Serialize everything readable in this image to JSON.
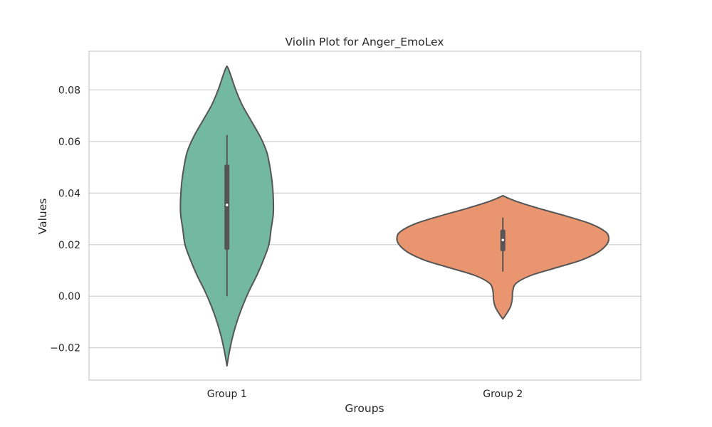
{
  "chart_data": {
    "type": "violin",
    "title": "Violin Plot for Anger_EmoLex",
    "xlabel": "Groups",
    "ylabel": "Values",
    "categories": [
      "Group 1",
      "Group 2"
    ],
    "ylim": [
      -0.0325,
      0.095
    ],
    "yticks": [
      {
        "value": -0.02,
        "label": "−0.02"
      },
      {
        "value": 0.0,
        "label": "0.00"
      },
      {
        "value": 0.02,
        "label": "0.02"
      },
      {
        "value": 0.04,
        "label": "0.04"
      },
      {
        "value": 0.06,
        "label": "0.06"
      },
      {
        "value": 0.08,
        "label": "0.08"
      }
    ],
    "grid": "horizontal",
    "series": [
      {
        "name": "Group 1",
        "color": "#73b8a1",
        "median": 0.0354,
        "q1": 0.018,
        "q3": 0.051,
        "whisker_low": 0.0,
        "whisker_high": 0.0625,
        "density": [
          {
            "y": -0.027,
            "w": 0.0
          },
          {
            "y": -0.022,
            "w": 0.02
          },
          {
            "y": -0.016,
            "w": 0.05
          },
          {
            "y": -0.01,
            "w": 0.09
          },
          {
            "y": -0.004,
            "w": 0.14
          },
          {
            "y": 0.002,
            "w": 0.2
          },
          {
            "y": 0.008,
            "w": 0.27
          },
          {
            "y": 0.014,
            "w": 0.33
          },
          {
            "y": 0.02,
            "w": 0.38
          },
          {
            "y": 0.026,
            "w": 0.4
          },
          {
            "y": 0.032,
            "w": 0.42
          },
          {
            "y": 0.038,
            "w": 0.42
          },
          {
            "y": 0.044,
            "w": 0.41
          },
          {
            "y": 0.05,
            "w": 0.39
          },
          {
            "y": 0.056,
            "w": 0.36
          },
          {
            "y": 0.062,
            "w": 0.3
          },
          {
            "y": 0.068,
            "w": 0.22
          },
          {
            "y": 0.074,
            "w": 0.14
          },
          {
            "y": 0.08,
            "w": 0.08
          },
          {
            "y": 0.085,
            "w": 0.04
          },
          {
            "y": 0.088,
            "w": 0.015
          },
          {
            "y": 0.0892,
            "w": 0.0
          }
        ]
      },
      {
        "name": "Group 2",
        "color": "#e9956f",
        "median": 0.0218,
        "q1": 0.0175,
        "q3": 0.0258,
        "whisker_low": 0.0095,
        "whisker_high": 0.0305,
        "density": [
          {
            "y": -0.0088,
            "w": 0.0
          },
          {
            "y": -0.007,
            "w": 0.03
          },
          {
            "y": -0.004,
            "w": 0.07
          },
          {
            "y": -0.001,
            "w": 0.085
          },
          {
            "y": 0.002,
            "w": 0.09
          },
          {
            "y": 0.005,
            "w": 0.12
          },
          {
            "y": 0.008,
            "w": 0.25
          },
          {
            "y": 0.011,
            "w": 0.48
          },
          {
            "y": 0.014,
            "w": 0.71
          },
          {
            "y": 0.017,
            "w": 0.86
          },
          {
            "y": 0.02,
            "w": 0.94
          },
          {
            "y": 0.0225,
            "w": 0.96
          },
          {
            "y": 0.025,
            "w": 0.93
          },
          {
            "y": 0.028,
            "w": 0.8
          },
          {
            "y": 0.031,
            "w": 0.58
          },
          {
            "y": 0.034,
            "w": 0.33
          },
          {
            "y": 0.0365,
            "w": 0.14
          },
          {
            "y": 0.038,
            "w": 0.05
          },
          {
            "y": 0.039,
            "w": 0.0
          }
        ]
      }
    ]
  }
}
